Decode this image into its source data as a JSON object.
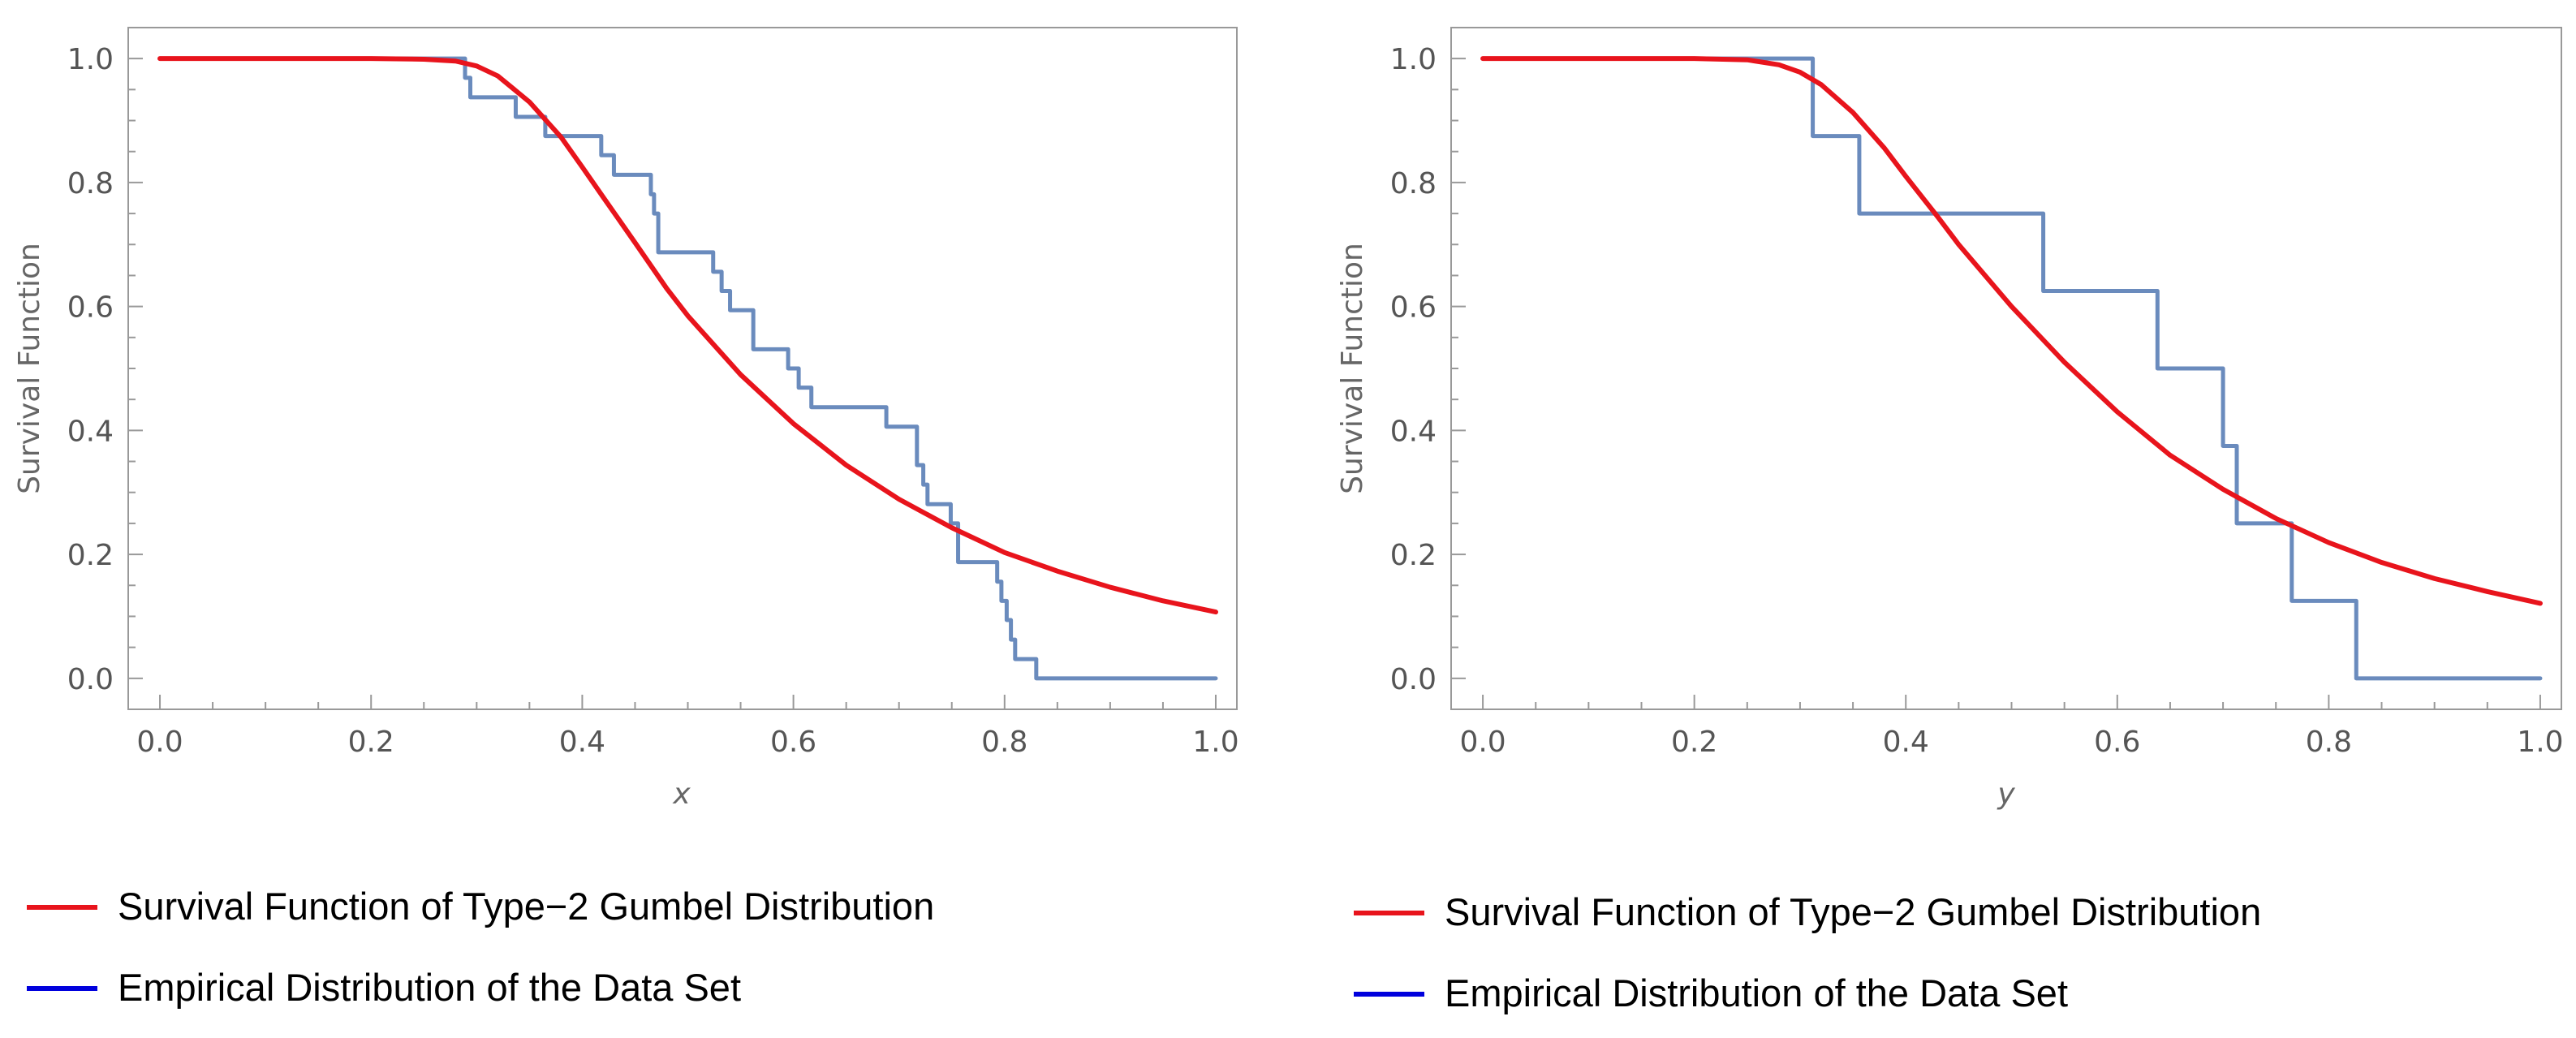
{
  "chart_data": [
    {
      "type": "line",
      "title": "",
      "xlabel": "x",
      "ylabel": "Survival Function",
      "xlim": [
        -0.03,
        1.02
      ],
      "ylim": [
        -0.05,
        1.05
      ],
      "xticks": [
        "0.0",
        "0.2",
        "0.4",
        "0.6",
        "0.8",
        "1.0"
      ],
      "yticks": [
        "0.0",
        "0.2",
        "0.4",
        "0.6",
        "0.8",
        "1.0"
      ],
      "grid": false,
      "legend_position": "bottom-left",
      "series": [
        {
          "name": "Survival Function of Type−2 Gumbel Distribution",
          "kind": "curve",
          "color": "#e8141c",
          "x": [
            0.0,
            0.05,
            0.1,
            0.15,
            0.2,
            0.25,
            0.28,
            0.3,
            0.32,
            0.35,
            0.38,
            0.4,
            0.42,
            0.45,
            0.48,
            0.5,
            0.55,
            0.6,
            0.65,
            0.7,
            0.75,
            0.8,
            0.85,
            0.9,
            0.95,
            1.0
          ],
          "y": [
            1.0,
            1.0,
            1.0,
            1.0,
            1.0,
            0.999,
            0.996,
            0.988,
            0.972,
            0.93,
            0.873,
            0.825,
            0.776,
            0.703,
            0.629,
            0.585,
            0.49,
            0.411,
            0.344,
            0.289,
            0.243,
            0.203,
            0.173,
            0.147,
            0.125,
            0.107
          ]
        },
        {
          "name": "Empirical Distribution of the Data Set",
          "kind": "step",
          "color": "#6a8bbd",
          "legend_color": "#0000dd",
          "x": [
            0.0,
            0.289,
            0.294,
            0.3,
            0.337,
            0.353,
            0.365,
            0.418,
            0.43,
            0.465,
            0.468,
            0.472,
            0.524,
            0.532,
            0.54,
            0.562,
            0.595,
            0.605,
            0.617,
            0.688,
            0.717,
            0.723,
            0.727,
            0.733,
            0.749,
            0.756,
            0.793,
            0.797,
            0.802,
            0.806,
            0.81,
            0.815,
            0.83,
            1.0
          ],
          "y": [
            1.0,
            0.969,
            0.9375,
            0.9375,
            0.906,
            0.906,
            0.875,
            0.844,
            0.8125,
            0.781,
            0.75,
            0.6875,
            0.656,
            0.625,
            0.594,
            0.531,
            0.5,
            0.469,
            0.4375,
            0.406,
            0.344,
            0.3125,
            0.281,
            0.281,
            0.25,
            0.1875,
            0.156,
            0.125,
            0.094,
            0.0625,
            0.031,
            0.031,
            0.0,
            0.0
          ]
        }
      ]
    },
    {
      "type": "line",
      "title": "",
      "xlabel": "y",
      "ylabel": "Survival Function",
      "xlim": [
        -0.03,
        1.02
      ],
      "ylim": [
        -0.05,
        1.05
      ],
      "xticks": [
        "0.0",
        "0.2",
        "0.4",
        "0.6",
        "0.8",
        "1.0"
      ],
      "yticks": [
        "0.0",
        "0.2",
        "0.4",
        "0.6",
        "0.8",
        "1.0"
      ],
      "grid": false,
      "legend_position": "bottom-left",
      "series": [
        {
          "name": "Survival Function of Type−2 Gumbel Distribution",
          "kind": "curve",
          "color": "#e8141c",
          "x": [
            0.0,
            0.05,
            0.1,
            0.15,
            0.2,
            0.25,
            0.28,
            0.3,
            0.32,
            0.35,
            0.38,
            0.4,
            0.43,
            0.45,
            0.5,
            0.55,
            0.6,
            0.65,
            0.7,
            0.75,
            0.8,
            0.85,
            0.9,
            0.95,
            1.0
          ],
          "y": [
            1.0,
            1.0,
            1.0,
            1.0,
            1.0,
            0.998,
            0.99,
            0.978,
            0.958,
            0.913,
            0.855,
            0.81,
            0.745,
            0.7,
            0.6,
            0.51,
            0.43,
            0.36,
            0.305,
            0.258,
            0.219,
            0.187,
            0.161,
            0.14,
            0.121
          ]
        },
        {
          "name": "Empirical Distribution of the Data Set",
          "kind": "step",
          "color": "#6a8bbd",
          "legend_color": "#0000dd",
          "x": [
            0.0,
            0.312,
            0.356,
            0.53,
            0.638,
            0.7,
            0.713,
            0.765,
            0.826,
            1.0
          ],
          "y": [
            1.0,
            0.875,
            0.75,
            0.625,
            0.5,
            0.375,
            0.25,
            0.125,
            0.0,
            0.0
          ]
        }
      ]
    }
  ]
}
